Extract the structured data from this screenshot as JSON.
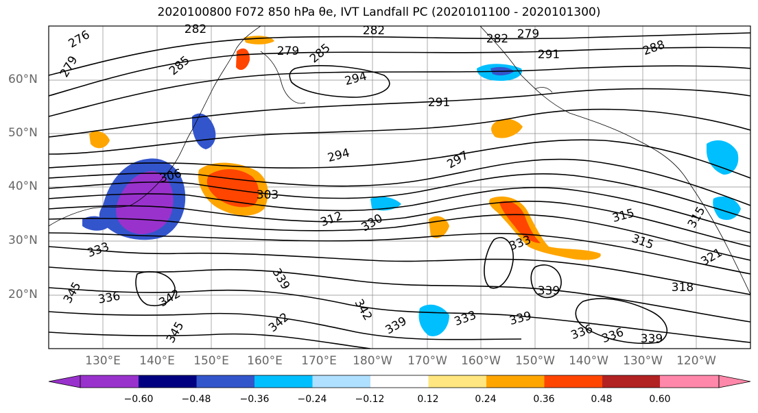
{
  "title": "2020100800 F072 850 hPa θe, IVT Landfall PC (2020101100 - 2020101300)",
  "lat_labels": [
    "60°N",
    "50°N",
    "40°N",
    "30°N",
    "20°N"
  ],
  "lon_labels": [
    "130°E",
    "140°E",
    "150°E",
    "160°E",
    "170°E",
    "180°W",
    "170°W",
    "160°W",
    "150°W",
    "140°W",
    "130°W",
    "120°W"
  ],
  "colorbar": {
    "ticks": [
      "−0.60",
      "−0.48",
      "−0.36",
      "−0.24",
      "−0.12",
      "0.12",
      "0.24",
      "0.36",
      "0.48",
      "0.60"
    ],
    "colors": [
      "#9932cc",
      "#000080",
      "#3355cc",
      "#00bfff",
      "#b0e0ff",
      "#ffffff",
      "#ffe680",
      "#ffa500",
      "#ff4500",
      "#b22222",
      "#ff88aa"
    ]
  },
  "contour_labels": [
    "276",
    "282",
    "282",
    "279",
    "282",
    "279",
    "291",
    "288",
    "279",
    "285",
    "285",
    "294",
    "291",
    "294",
    "297",
    "306",
    "303",
    "312",
    "330",
    "315",
    "315",
    "318",
    "321",
    "333",
    "333",
    "339",
    "336",
    "342",
    "345",
    "342",
    "339",
    "333",
    "339",
    "339",
    "342",
    "336",
    "315",
    "336",
    "345",
    "339"
  ]
}
